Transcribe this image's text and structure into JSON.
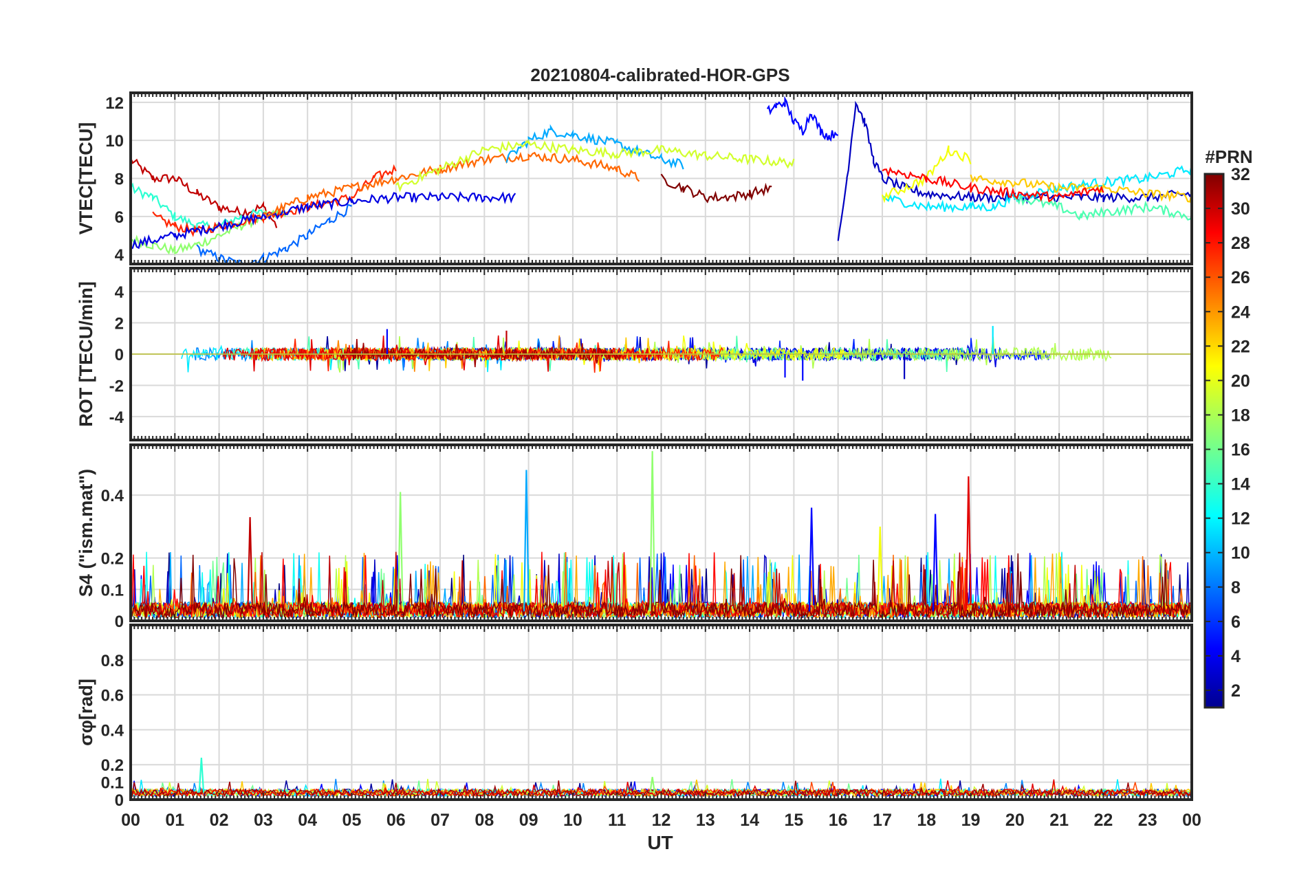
{
  "title": "20210804-calibrated-HOR-GPS",
  "xlabel": "UT",
  "x_ticks": [
    "00",
    "01",
    "02",
    "03",
    "04",
    "05",
    "06",
    "07",
    "08",
    "09",
    "10",
    "11",
    "12",
    "13",
    "14",
    "15",
    "16",
    "17",
    "18",
    "19",
    "20",
    "21",
    "22",
    "23",
    "00"
  ],
  "colorbar": {
    "label": "#PRN",
    "ticks": [
      "2",
      "4",
      "6",
      "8",
      "10",
      "12",
      "14",
      "16",
      "18",
      "20",
      "22",
      "24",
      "26",
      "28",
      "30",
      "32"
    ],
    "range": [
      1,
      32
    ],
    "colormap": "jet"
  },
  "chart_data": [
    {
      "type": "line",
      "id": "vtec",
      "ylabel": "VTEC[TECU]",
      "ylim": [
        3.5,
        12.5
      ],
      "yticks": [
        "4",
        "6",
        "8",
        "10",
        "12"
      ],
      "xlim": [
        0,
        24
      ],
      "series": [
        {
          "prn": 30,
          "name": "PRN 30",
          "x": [
            0,
            0.5,
            1,
            1.5,
            2,
            2.5,
            3,
            3.3
          ],
          "y": [
            9,
            8,
            8,
            7.2,
            6.5,
            6.2,
            6.5,
            5.5
          ]
        },
        {
          "prn": 14,
          "name": "PRN 14",
          "x": [
            0,
            0.5,
            1,
            1.5,
            2,
            2.5,
            3
          ],
          "y": [
            7.5,
            7,
            6,
            5.5,
            5.5,
            6,
            6.2
          ]
        },
        {
          "prn": 17,
          "name": "PRN 17",
          "x": [
            0,
            0.5,
            1,
            1.5,
            2,
            2.5,
            3,
            3.5
          ],
          "y": [
            4.8,
            4.5,
            4.2,
            4.5,
            5,
            5.5,
            6,
            6.2
          ]
        },
        {
          "prn": 8,
          "name": "PRN 8",
          "x": [
            1.5,
            2,
            2.5,
            3,
            3.5,
            4,
            4.5,
            5
          ],
          "y": [
            4.3,
            3.8,
            3.5,
            3.8,
            4.3,
            5,
            5.8,
            6.5
          ]
        },
        {
          "prn": 27,
          "name": "PRN 27",
          "x": [
            0.5,
            1,
            1.5,
            2,
            3,
            4,
            5,
            5.5,
            6
          ],
          "y": [
            6,
            5.5,
            5.2,
            5.5,
            6,
            6.5,
            7,
            8,
            8.5
          ]
        },
        {
          "prn": 4,
          "name": "PRN 4",
          "x": [
            0,
            1,
            2,
            3,
            4,
            5,
            6,
            7,
            8,
            8.7
          ],
          "y": [
            4.5,
            5,
            5.5,
            6,
            6.5,
            6.8,
            7,
            7,
            7,
            7
          ]
        },
        {
          "prn": 25,
          "name": "PRN 25",
          "x": [
            3,
            4,
            5,
            6,
            7,
            8,
            9,
            10,
            11,
            11.5
          ],
          "y": [
            6,
            7,
            7.5,
            8,
            8.5,
            9,
            9.2,
            9,
            8.5,
            8
          ]
        },
        {
          "prn": 10,
          "name": "PRN 10",
          "x": [
            8.5,
            9,
            9.5,
            10,
            11,
            12,
            12.5
          ],
          "y": [
            9,
            10,
            10.5,
            10.3,
            9.8,
            9,
            8.7
          ]
        },
        {
          "prn": 19,
          "name": "PRN 19",
          "x": [
            6,
            7,
            8,
            9,
            10,
            11,
            12,
            13,
            14,
            15
          ],
          "y": [
            7.5,
            8.5,
            9.5,
            9.8,
            9.5,
            9.3,
            9.5,
            9.2,
            9,
            8.8
          ]
        },
        {
          "prn": 32,
          "name": "PRN 32",
          "x": [
            12,
            12.5,
            13,
            13.5,
            14,
            14.5
          ],
          "y": [
            8,
            7.5,
            7,
            7,
            7.2,
            7.5
          ]
        },
        {
          "prn": 5,
          "name": "PRN 5",
          "x": [
            14.4,
            14.6,
            14.8,
            15,
            15.2,
            15.4,
            15.6,
            15.8,
            16
          ],
          "y": [
            11.5,
            11.8,
            12,
            11,
            10.5,
            11.5,
            10.5,
            10.2,
            10.5
          ]
        },
        {
          "prn": 3,
          "name": "PRN 3",
          "x": [
            16,
            16.2,
            16.4,
            16.6,
            16.8,
            17,
            17.5,
            18,
            19,
            20,
            21,
            22,
            23,
            24
          ],
          "y": [
            4.5,
            8,
            12,
            11,
            9,
            8,
            7.5,
            7.2,
            7,
            7,
            7,
            7,
            7,
            7.2
          ]
        },
        {
          "prn": 12,
          "name": "PRN 12",
          "x": [
            17,
            18,
            19,
            19.5,
            20,
            21,
            22,
            23,
            24
          ],
          "y": [
            7,
            6.5,
            6.5,
            6.5,
            7,
            7.5,
            7.8,
            8,
            8.5
          ]
        },
        {
          "prn": 20,
          "name": "PRN 20",
          "x": [
            17,
            18,
            18.5,
            19
          ],
          "y": [
            7,
            8,
            9.5,
            9
          ]
        },
        {
          "prn": 15,
          "name": "PRN 15",
          "x": [
            20,
            21,
            21.5,
            22,
            23,
            24
          ],
          "y": [
            7,
            6.5,
            6,
            6.2,
            6.5,
            6
          ]
        },
        {
          "prn": 22,
          "name": "PRN 22",
          "x": [
            19,
            20,
            21,
            22,
            23,
            24
          ],
          "y": [
            8,
            7.8,
            7.5,
            7.5,
            7.2,
            7
          ]
        },
        {
          "prn": 28,
          "name": "PRN 28",
          "x": [
            17,
            18,
            19,
            20,
            21,
            22
          ],
          "y": [
            8.5,
            8,
            7.5,
            7.2,
            7,
            7.5
          ]
        }
      ]
    },
    {
      "type": "line",
      "id": "rot",
      "ylabel": "ROT [TECU/min]",
      "ylim": [
        -5.5,
        5.5
      ],
      "yticks": [
        "-4",
        "-2",
        "0",
        "2",
        "4"
      ],
      "xlim": [
        0,
        24
      ],
      "series": [
        {
          "prn": 31,
          "name": "PRN 31",
          "x": [
            0,
            6,
            12,
            18,
            24
          ],
          "y": [
            0,
            0,
            0,
            0,
            0
          ]
        },
        {
          "prn": 27,
          "name": "PRN 27",
          "x": [
            0,
            6,
            12,
            18,
            24
          ],
          "y": [
            0,
            0,
            0,
            0,
            0
          ]
        },
        {
          "prn": 5,
          "name": "PRN 5",
          "x": [
            0,
            6,
            12,
            18,
            24
          ],
          "y": [
            0,
            0,
            0,
            0,
            0
          ]
        },
        {
          "prn": 19,
          "name": "PRN 19",
          "x": [
            0,
            6,
            12,
            18,
            24
          ],
          "y": [
            0,
            0,
            0,
            0,
            0
          ]
        }
      ],
      "peaks": [
        {
          "prn": 5,
          "x": 5.8,
          "y": 1.6
        },
        {
          "prn": 30,
          "x": 8.5,
          "y": 1.5
        },
        {
          "prn": 12,
          "x": 19.5,
          "y": 1.8
        },
        {
          "prn": 5,
          "x": 14.8,
          "y": -1.5
        },
        {
          "prn": 5,
          "x": 15.2,
          "y": -1.7
        },
        {
          "prn": 3,
          "x": 17.5,
          "y": -1.6
        }
      ]
    },
    {
      "type": "line",
      "id": "s4",
      "ylabel": "S4 (\"ism.mat\")",
      "ylim": [
        0,
        0.56
      ],
      "yticks": [
        "0",
        "0.1",
        "0.2",
        "0.4"
      ],
      "xlim": [
        0,
        24
      ],
      "peaks": [
        {
          "prn": 30,
          "x": 2.7,
          "y": 0.33
        },
        {
          "prn": 17,
          "x": 6.1,
          "y": 0.41
        },
        {
          "prn": 10,
          "x": 8.95,
          "y": 0.48
        },
        {
          "prn": 17,
          "x": 11.8,
          "y": 0.54
        },
        {
          "prn": 5,
          "x": 15.4,
          "y": 0.36
        },
        {
          "prn": 5,
          "x": 18.2,
          "y": 0.34
        },
        {
          "prn": 29,
          "x": 18.95,
          "y": 0.46
        },
        {
          "prn": 20,
          "x": 16.95,
          "y": 0.3
        }
      ]
    },
    {
      "type": "line",
      "id": "sigma_phi",
      "ylabel": "σφ[rad]",
      "ylim": [
        0,
        1.0
      ],
      "yticks": [
        "0",
        "0.1",
        "0.2",
        "0.4",
        "0.6",
        "0.8"
      ],
      "xlim": [
        0,
        24
      ],
      "peaks": [
        {
          "prn": 14,
          "x": 1.6,
          "y": 0.24
        },
        {
          "prn": 17,
          "x": 11.8,
          "y": 0.13
        }
      ]
    }
  ]
}
